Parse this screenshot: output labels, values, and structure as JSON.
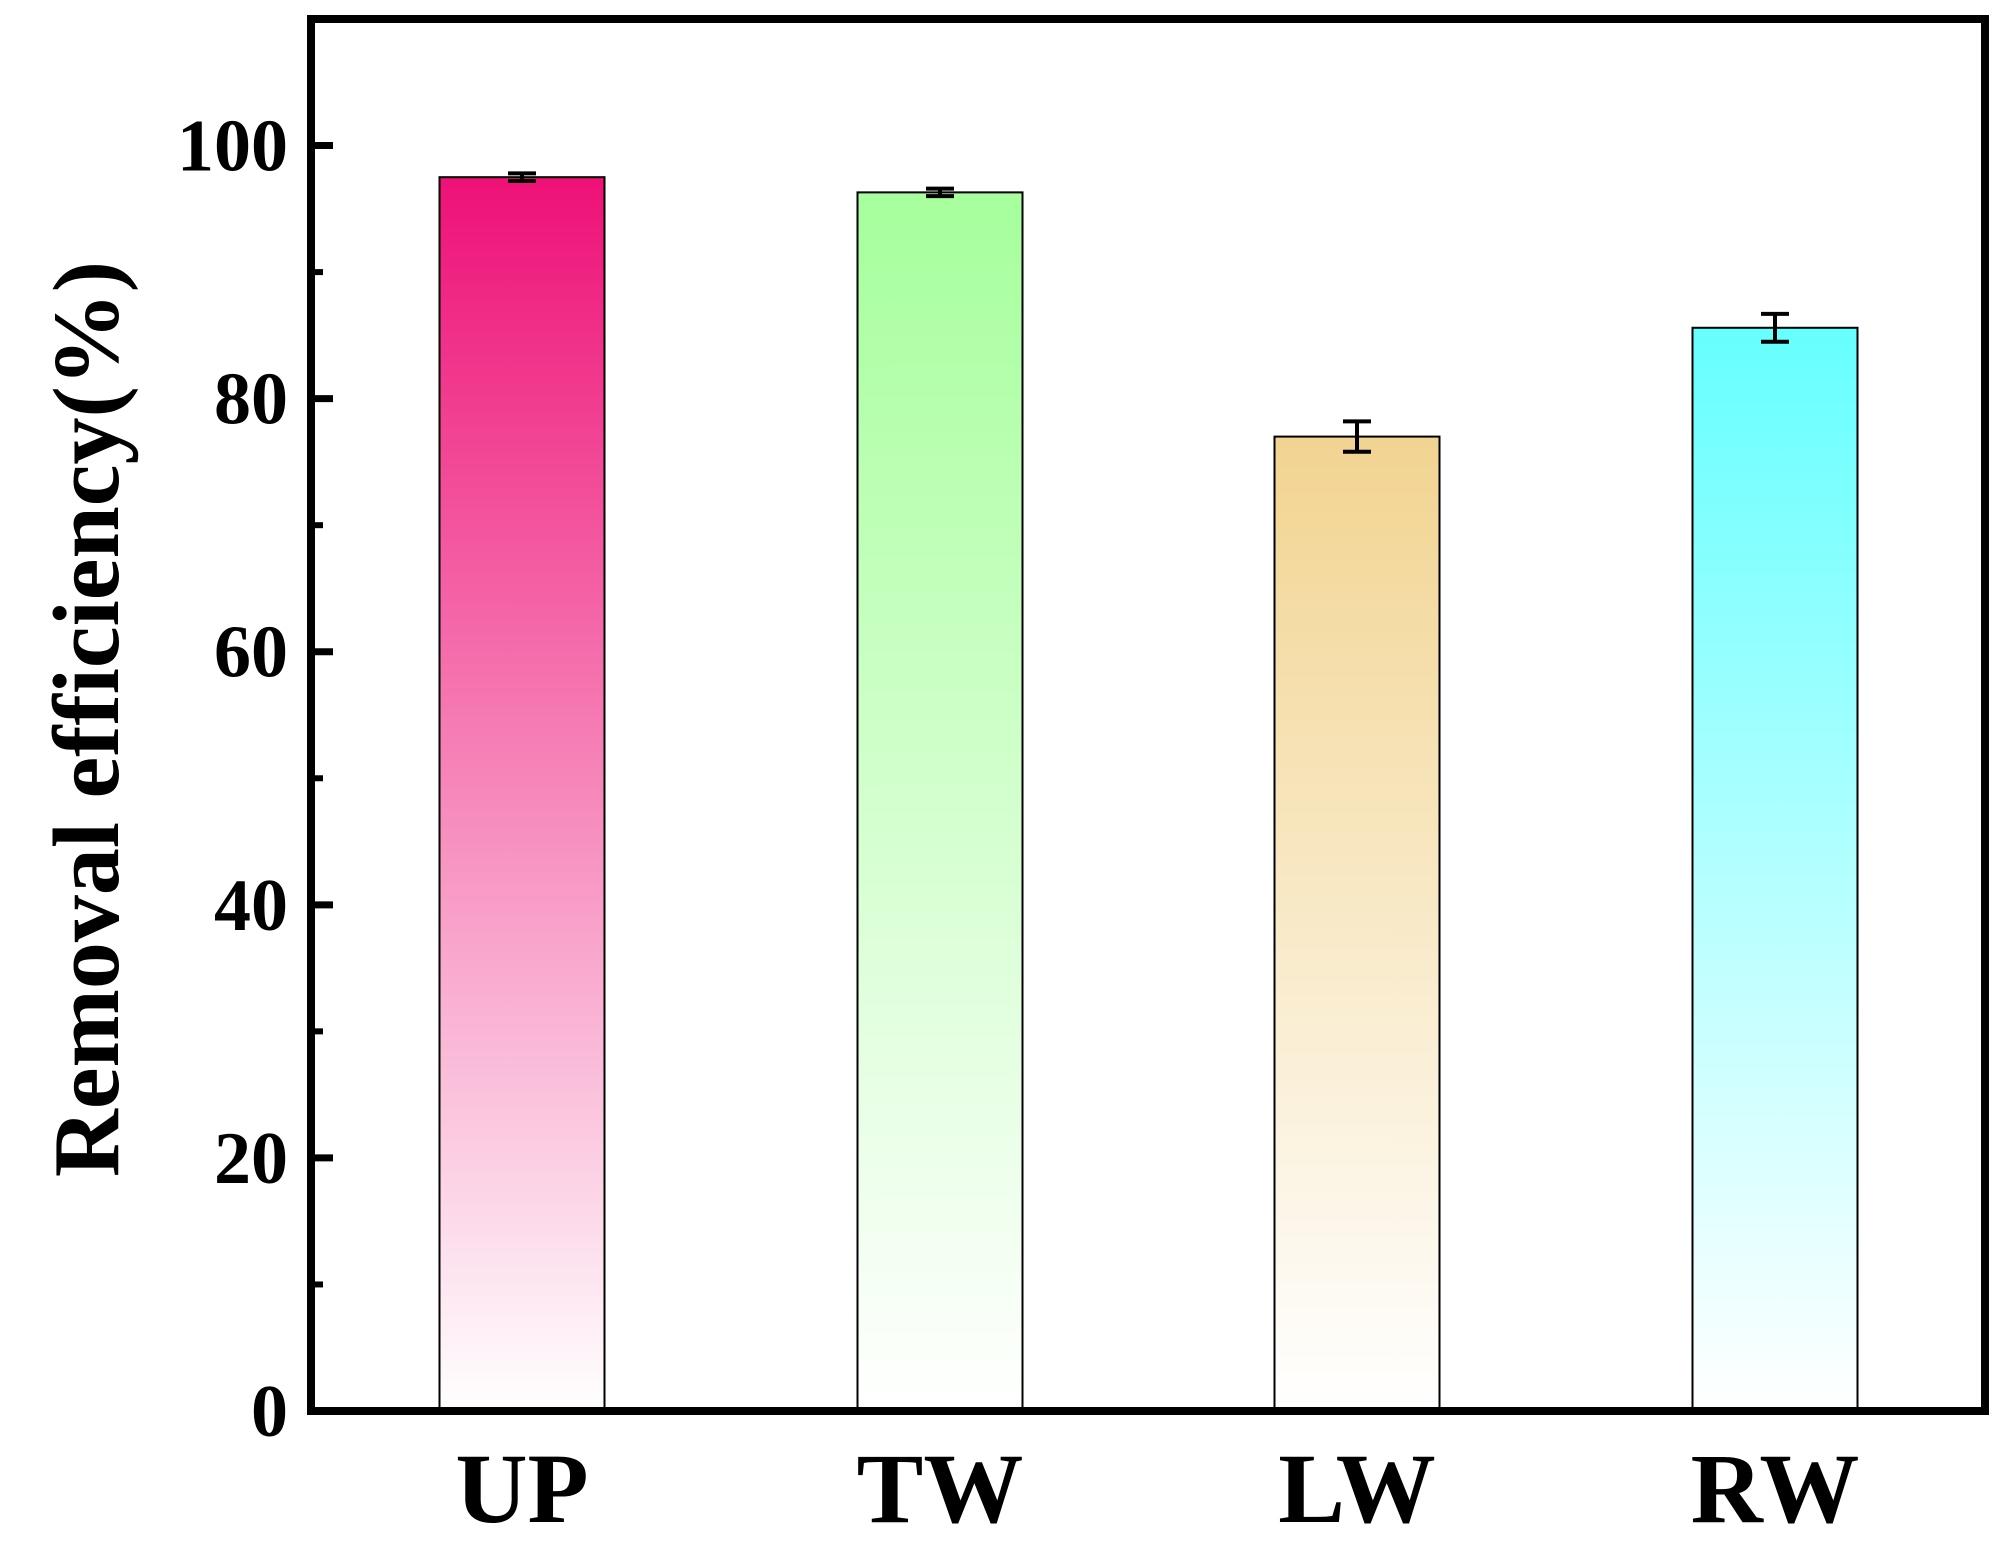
{
  "chart_data": {
    "type": "bar",
    "title": "",
    "xlabel": "",
    "ylabel": "Removal efficiency(%)",
    "ylim": [
      0,
      110
    ],
    "yticks": [
      0,
      20,
      40,
      60,
      80,
      100
    ],
    "yticks_minor": [
      10,
      30,
      50,
      70,
      90
    ],
    "categories": [
      "UP",
      "TW",
      "LW",
      "RW"
    ],
    "values": [
      97.5,
      96.3,
      77.0,
      85.6
    ],
    "errors": [
      0.3,
      0.3,
      1.2,
      1.1
    ],
    "colors": [
      "#ee1177",
      "#a6ff9c",
      "#f2d491",
      "#66ffff"
    ],
    "grid": false,
    "legend": "none"
  }
}
